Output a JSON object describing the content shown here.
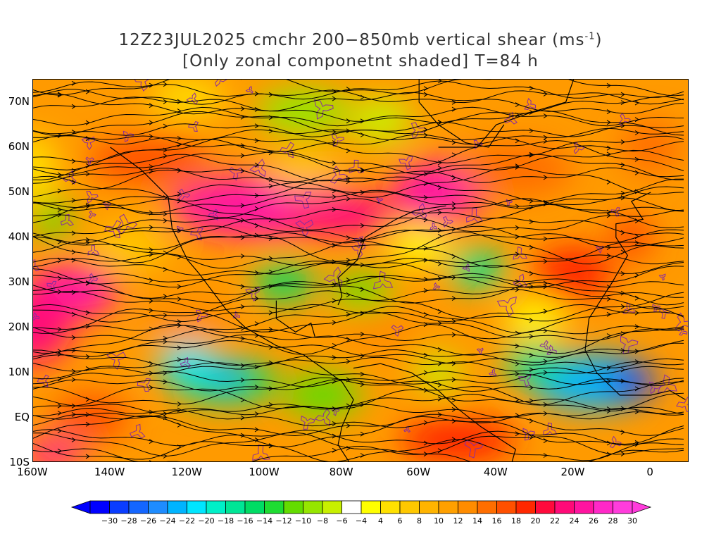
{
  "title": {
    "line1": "12Z23JUL2025 cmchr 200−850mb vertical shear (ms",
    "unit_sup": "-1",
    "line1_end": ")",
    "line2": "[Only zonal componetnt shaded] T=84 h"
  },
  "axes": {
    "lat_labels": [
      "70N",
      "60N",
      "50N",
      "40N",
      "30N",
      "20N",
      "10N",
      "EQ",
      "10S"
    ],
    "lat_values": [
      70,
      60,
      50,
      40,
      30,
      20,
      10,
      0,
      -10
    ],
    "lon_labels": [
      "160W",
      "140W",
      "120W",
      "100W",
      "80W",
      "60W",
      "40W",
      "20W",
      "0"
    ],
    "lon_values": [
      -160,
      -140,
      -120,
      -100,
      -80,
      -60,
      -40,
      -20,
      0
    ],
    "lon_range": [
      -160,
      10
    ],
    "lat_range": [
      -10,
      75
    ]
  },
  "colorbar": {
    "labels": [
      "-30",
      "-28",
      "-26",
      "-24",
      "-22",
      "-20",
      "-18",
      "-16",
      "-14",
      "-12",
      "-10",
      "-8",
      "-6",
      "-4",
      "4",
      "6",
      "8",
      "10",
      "12",
      "14",
      "16",
      "18",
      "20",
      "22",
      "24",
      "26",
      "28",
      "30"
    ],
    "colors": [
      "#0000ff",
      "#0a3dff",
      "#1466ff",
      "#1e8cff",
      "#00b4ff",
      "#00e6ff",
      "#00f0c8",
      "#00e696",
      "#00dc64",
      "#1edc32",
      "#64dc00",
      "#96e600",
      "#c8f000",
      "#ffffff",
      "#ffff00",
      "#ffe100",
      "#ffc800",
      "#ffb400",
      "#ffa000",
      "#ff8c00",
      "#ff6e00",
      "#ff5000",
      "#ff2800",
      "#ff0a3c",
      "#ff0a78",
      "#ff14a0",
      "#ff28c8",
      "#ff3cdc"
    ]
  },
  "colors": {
    "streamline": "#000000",
    "contour": "#8a2ca0",
    "map_border": "#000000"
  }
}
